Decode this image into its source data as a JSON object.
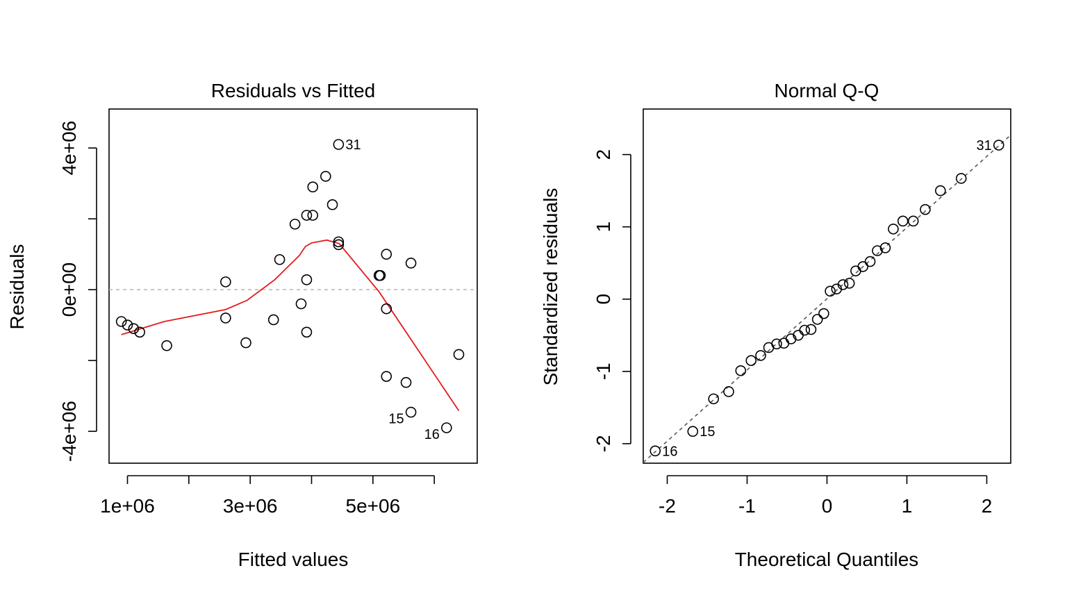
{
  "chart_data": [
    {
      "type": "scatter",
      "title": "Residuals vs Fitted",
      "xlabel": "Fitted values",
      "ylabel": "Residuals",
      "xlim": [
        700000,
        6700000
      ],
      "ylim": [
        -4900000,
        5100000
      ],
      "xticks": [
        {
          "value": 1000000,
          "label": "1e+06"
        },
        {
          "value": 2000000,
          "label": ""
        },
        {
          "value": 3000000,
          "label": "3e+06"
        },
        {
          "value": 4000000,
          "label": ""
        },
        {
          "value": 5000000,
          "label": "5e+06"
        },
        {
          "value": 6000000,
          "label": ""
        }
      ],
      "yticks": [
        {
          "value": 4000000,
          "label": "4e+06"
        },
        {
          "value": 2000000,
          "label": ""
        },
        {
          "value": 0,
          "label": "0e+00"
        },
        {
          "value": -2000000,
          "label": ""
        },
        {
          "value": -4000000,
          "label": "-4e+06"
        }
      ],
      "reference_line": {
        "y": 0,
        "color": "#bbbbbb",
        "dashed": true
      },
      "smoother": {
        "color": "#e31a1c",
        "points": [
          [
            900000,
            -1270000
          ],
          [
            1600000,
            -900000
          ],
          [
            2600000,
            -560000
          ],
          [
            2950000,
            -300000
          ],
          [
            3400000,
            280000
          ],
          [
            3800000,
            960000
          ],
          [
            3900000,
            1220000
          ],
          [
            4000000,
            1320000
          ],
          [
            4250000,
            1400000
          ],
          [
            4450000,
            1300000
          ],
          [
            5100000,
            -60000
          ],
          [
            6400000,
            -3420000
          ]
        ]
      },
      "points": [
        {
          "x": 900000,
          "y": -900000,
          "label": ""
        },
        {
          "x": 1000000,
          "y": -1000000,
          "label": ""
        },
        {
          "x": 1100000,
          "y": -1100000,
          "label": ""
        },
        {
          "x": 1200000,
          "y": -1200000,
          "label": ""
        },
        {
          "x": 1640000,
          "y": -1580000,
          "label": ""
        },
        {
          "x": 2600000,
          "y": 220000,
          "label": ""
        },
        {
          "x": 2600000,
          "y": -800000,
          "label": ""
        },
        {
          "x": 2930000,
          "y": -1500000,
          "label": ""
        },
        {
          "x": 3380000,
          "y": -850000,
          "label": ""
        },
        {
          "x": 3480000,
          "y": 850000,
          "label": ""
        },
        {
          "x": 3730000,
          "y": 1850000,
          "label": ""
        },
        {
          "x": 3830000,
          "y": -400000,
          "label": ""
        },
        {
          "x": 3920000,
          "y": 2100000,
          "label": ""
        },
        {
          "x": 3920000,
          "y": 280000,
          "label": ""
        },
        {
          "x": 3920000,
          "y": -1200000,
          "label": ""
        },
        {
          "x": 4020000,
          "y": 2900000,
          "label": ""
        },
        {
          "x": 4020000,
          "y": 2100000,
          "label": ""
        },
        {
          "x": 4230000,
          "y": 3200000,
          "label": ""
        },
        {
          "x": 4340000,
          "y": 2400000,
          "label": ""
        },
        {
          "x": 4440000,
          "y": 4100000,
          "label": "31"
        },
        {
          "x": 4440000,
          "y": 1350000,
          "label": ""
        },
        {
          "x": 4440000,
          "y": 1270000,
          "label": ""
        },
        {
          "x": 5100000,
          "y": 400000,
          "label": ""
        },
        {
          "x": 5120000,
          "y": 400000,
          "label": ""
        },
        {
          "x": 5220000,
          "y": 1000000,
          "label": ""
        },
        {
          "x": 5220000,
          "y": -540000,
          "label": ""
        },
        {
          "x": 5220000,
          "y": -2450000,
          "label": ""
        },
        {
          "x": 5540000,
          "y": -2620000,
          "label": ""
        },
        {
          "x": 5620000,
          "y": 750000,
          "label": ""
        },
        {
          "x": 5620000,
          "y": -3460000,
          "label": "15"
        },
        {
          "x": 6200000,
          "y": -3900000,
          "label": "16"
        },
        {
          "x": 6400000,
          "y": -1830000,
          "label": ""
        }
      ]
    },
    {
      "type": "scatter",
      "title": "Normal Q-Q",
      "xlabel": "Theoretical Quantiles",
      "ylabel": "Standardized residuals",
      "xlim": [
        -2.3,
        2.3
      ],
      "ylim": [
        -2.27,
        2.63
      ],
      "xticks": [
        {
          "value": -2,
          "label": "-2"
        },
        {
          "value": -1,
          "label": "-1"
        },
        {
          "value": 0,
          "label": "0"
        },
        {
          "value": 1,
          "label": "1"
        },
        {
          "value": 2,
          "label": "2"
        }
      ],
      "yticks": [
        {
          "value": 2,
          "label": "2"
        },
        {
          "value": 1,
          "label": "1"
        },
        {
          "value": 0,
          "label": "0"
        },
        {
          "value": -1,
          "label": "-1"
        },
        {
          "value": -2,
          "label": "-2"
        }
      ],
      "reference_line": {
        "from": [
          -2.3,
          -2.26
        ],
        "to": [
          2.3,
          2.27
        ],
        "color": "#555555",
        "dashed": true
      },
      "points": [
        {
          "x": -2.15,
          "y": -2.1,
          "label": "16"
        },
        {
          "x": -1.68,
          "y": -1.83,
          "label": "15"
        },
        {
          "x": -1.42,
          "y": -1.38,
          "label": ""
        },
        {
          "x": -1.23,
          "y": -1.28,
          "label": ""
        },
        {
          "x": -1.08,
          "y": -0.99,
          "label": ""
        },
        {
          "x": -0.95,
          "y": -0.85,
          "label": ""
        },
        {
          "x": -0.83,
          "y": -0.78,
          "label": ""
        },
        {
          "x": -0.73,
          "y": -0.67,
          "label": ""
        },
        {
          "x": -0.63,
          "y": -0.62,
          "label": ""
        },
        {
          "x": -0.54,
          "y": -0.61,
          "label": ""
        },
        {
          "x": -0.45,
          "y": -0.55,
          "label": ""
        },
        {
          "x": -0.36,
          "y": -0.5,
          "label": ""
        },
        {
          "x": -0.28,
          "y": -0.43,
          "label": ""
        },
        {
          "x": -0.2,
          "y": -0.42,
          "label": ""
        },
        {
          "x": -0.12,
          "y": -0.28,
          "label": ""
        },
        {
          "x": -0.04,
          "y": -0.2,
          "label": ""
        },
        {
          "x": 0.04,
          "y": 0.11,
          "label": ""
        },
        {
          "x": 0.12,
          "y": 0.14,
          "label": ""
        },
        {
          "x": 0.2,
          "y": 0.2,
          "label": ""
        },
        {
          "x": 0.28,
          "y": 0.22,
          "label": ""
        },
        {
          "x": 0.36,
          "y": 0.39,
          "label": ""
        },
        {
          "x": 0.45,
          "y": 0.45,
          "label": ""
        },
        {
          "x": 0.54,
          "y": 0.52,
          "label": ""
        },
        {
          "x": 0.63,
          "y": 0.67,
          "label": ""
        },
        {
          "x": 0.73,
          "y": 0.71,
          "label": ""
        },
        {
          "x": 0.83,
          "y": 0.97,
          "label": ""
        },
        {
          "x": 0.95,
          "y": 1.08,
          "label": ""
        },
        {
          "x": 1.08,
          "y": 1.08,
          "label": ""
        },
        {
          "x": 1.23,
          "y": 1.24,
          "label": ""
        },
        {
          "x": 1.42,
          "y": 1.5,
          "label": ""
        },
        {
          "x": 1.68,
          "y": 1.67,
          "label": ""
        },
        {
          "x": 2.15,
          "y": 2.13,
          "label": "31"
        }
      ]
    }
  ]
}
